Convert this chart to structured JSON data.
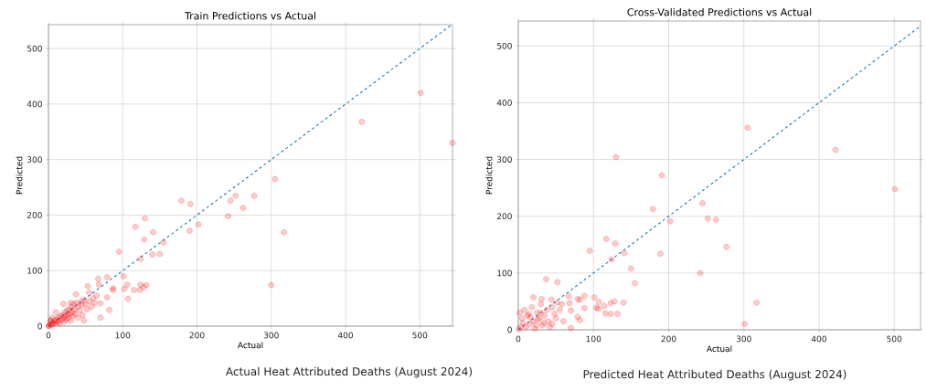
{
  "chart_data": [
    {
      "type": "scatter",
      "title": "Train Predictions vs Actual",
      "xlabel": "Actual",
      "ylabel": "Predicted",
      "annotations": [
        "Actual Heat Attributed Deaths (August 2024)"
      ],
      "xlim": [
        0,
        544
      ],
      "ylim": [
        0,
        543
      ],
      "xticks": [
        0,
        100,
        200,
        300,
        400,
        500
      ],
      "yticks": [
        0,
        100,
        200,
        300,
        400,
        500
      ],
      "grid": true,
      "series": [
        {
          "color": "#ff0000",
          "marker": "circle",
          "x": [
            501,
            422,
            544,
            305,
            179,
            191,
            245,
            252,
            277,
            262,
            242,
            202,
            190,
            317,
            300,
            130,
            117,
            141,
            129,
            155,
            140,
            150,
            95,
            124,
            101,
            79,
            67,
            53,
            68,
            87,
            87,
            106,
            102,
            107,
            124,
            132,
            128,
            115,
            123,
            79,
            70,
            82,
            70,
            37,
            55,
            0,
            1,
            2,
            3,
            4,
            5,
            6,
            8,
            9,
            10,
            12,
            13,
            14,
            15,
            16,
            18,
            19,
            20,
            21,
            22,
            23,
            24,
            25,
            26,
            27,
            28,
            29,
            30,
            31,
            32,
            33,
            34,
            35,
            36,
            38,
            40,
            42,
            44,
            45,
            46,
            48,
            50,
            52,
            55,
            58,
            60,
            62,
            65,
            48,
            30,
            20,
            10,
            5,
            3,
            40
          ],
          "values": [
            420,
            368,
            330,
            265,
            226,
            220,
            226,
            235,
            235,
            213,
            198,
            183,
            172,
            169,
            74,
            194,
            179,
            169,
            156,
            151,
            129,
            130,
            134,
            121,
            90,
            88,
            85,
            72,
            75,
            68,
            65,
            75,
            67,
            49,
            75,
            74,
            70,
            65,
            65,
            52,
            41,
            29,
            15,
            57,
            60,
            0,
            1,
            3,
            10,
            2,
            6,
            4,
            9,
            5,
            12,
            8,
            15,
            10,
            5,
            18,
            12,
            20,
            15,
            8,
            25,
            18,
            12,
            28,
            20,
            15,
            30,
            22,
            10,
            35,
            25,
            18,
            40,
            30,
            22,
            42,
            35,
            28,
            45,
            38,
            20,
            48,
            40,
            30,
            45,
            35,
            50,
            42,
            55,
            10,
            42,
            40,
            25,
            15,
            10,
            15
          ]
        },
        {
          "type": "line",
          "color": "#1f77b4",
          "line_style": "dashed",
          "marker": "none",
          "x": [
            0,
            543
          ],
          "values": [
            0,
            543
          ]
        }
      ]
    },
    {
      "type": "scatter",
      "title": "Cross-Validated Predictions vs Actual",
      "xlabel": "Actual",
      "ylabel": "Predicted",
      "annotations": [
        "Predicted Heat Attributed Deaths (August 2024)"
      ],
      "xlim": [
        0,
        535
      ],
      "ylim": [
        0,
        544
      ],
      "xticks": [
        0,
        100,
        200,
        300,
        400,
        500
      ],
      "yticks": [
        0,
        100,
        200,
        300,
        400,
        500
      ],
      "grid": true,
      "series": [
        {
          "color": "#ff0000",
          "marker": "circle",
          "x": [
            501,
            422,
            305,
            130,
            191,
            179,
            245,
            252,
            263,
            202,
            277,
            189,
            242,
            301,
            317,
            117,
            129,
            141,
            124,
            95,
            150,
            155,
            37,
            52,
            88,
            101,
            67,
            79,
            82,
            107,
            128,
            123,
            140,
            114,
            104,
            106,
            88,
            116,
            123,
            132,
            79,
            82,
            70,
            68,
            70,
            20,
            31,
            44,
            2,
            5,
            8,
            10,
            12,
            15,
            18,
            20,
            22,
            25,
            28,
            30,
            32,
            35,
            38,
            40,
            42,
            45,
            48,
            50,
            55,
            58,
            60,
            3,
            6,
            14,
            24,
            26,
            34,
            1,
            16,
            30,
            45,
            52
          ],
          "values": [
            248,
            317,
            356,
            304,
            272,
            213,
            223,
            196,
            194,
            191,
            146,
            134,
            100,
            10,
            48,
            160,
            152,
            135,
            124,
            139,
            108,
            82,
            89,
            84,
            60,
            57,
            59,
            54,
            53,
            49,
            50,
            47,
            48,
            42,
            39,
            37,
            38,
            29,
            28,
            28,
            23,
            17,
            3,
            47,
            34,
            57,
            54,
            53,
            30,
            20,
            35,
            5,
            25,
            10,
            40,
            15,
            2,
            30,
            20,
            45,
            8,
            25,
            35,
            15,
            5,
            40,
            28,
            20,
            35,
            45,
            15,
            5,
            12,
            28,
            8,
            18,
            12,
            1,
            22,
            30,
            10,
            48
          ]
        },
        {
          "type": "line",
          "color": "#1f77b4",
          "line_style": "dashed",
          "marker": "none",
          "x": [
            0,
            535
          ],
          "values": [
            0,
            535
          ]
        }
      ]
    }
  ]
}
